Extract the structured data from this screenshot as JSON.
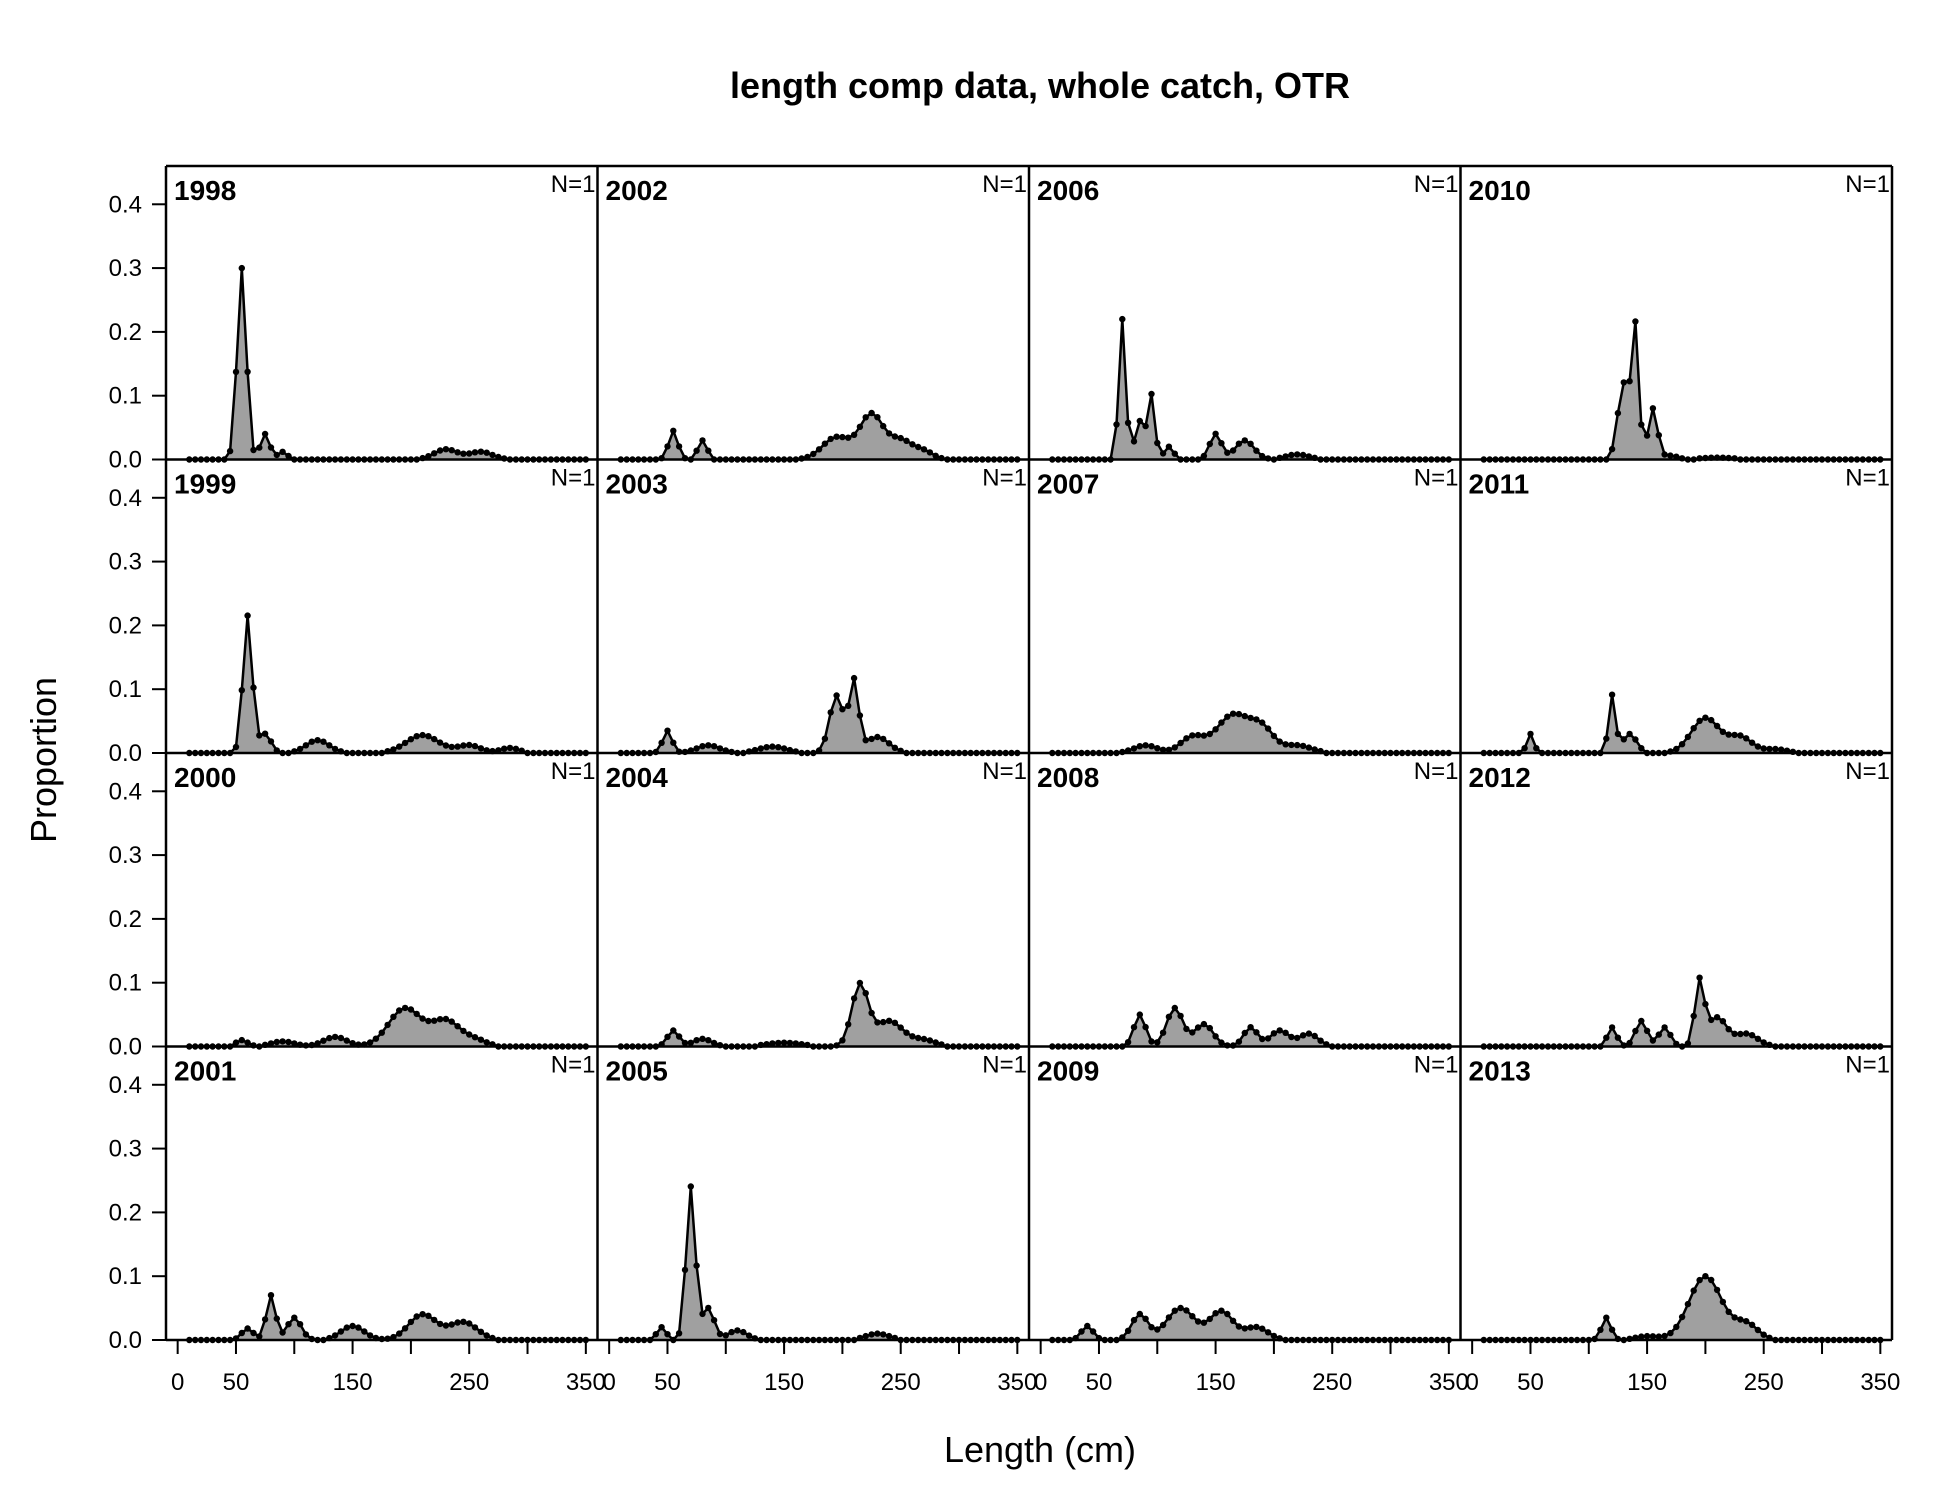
{
  "chart_data": {
    "type": "area",
    "title": "length comp data, whole catch, OTR",
    "xlabel": "Length (cm)",
    "ylabel": "Proportion",
    "xlim": [
      -10,
      360
    ],
    "ylim": [
      0,
      0.46
    ],
    "x_ticks": [
      0,
      50,
      150,
      250,
      350
    ],
    "y_ticks": [
      "0.0",
      "0.1",
      "0.2",
      "0.3",
      "0.4"
    ],
    "grid": false,
    "fill_color": "#a0a0a0",
    "line_color": "#000000",
    "bin_start": 10,
    "bin_step": 5,
    "bin_end": 350,
    "panels": [
      {
        "year": "1998",
        "n_label": "N=1",
        "peaks": [
          [
            55,
            0.3,
            4
          ],
          [
            75,
            0.04,
            4
          ],
          [
            90,
            0.012,
            4
          ],
          [
            230,
            0.016,
            10
          ],
          [
            260,
            0.012,
            10
          ]
        ]
      },
      {
        "year": "1999",
        "n_label": "N=1",
        "peaks": [
          [
            60,
            0.215,
            4
          ],
          [
            75,
            0.03,
            5
          ],
          [
            120,
            0.02,
            10
          ],
          [
            210,
            0.028,
            14
          ],
          [
            250,
            0.012,
            10
          ],
          [
            285,
            0.008,
            8
          ]
        ]
      },
      {
        "year": "2000",
        "n_label": "N=1",
        "peaks": [
          [
            55,
            0.01,
            5
          ],
          [
            90,
            0.008,
            10
          ],
          [
            135,
            0.015,
            10
          ],
          [
            195,
            0.06,
            14
          ],
          [
            230,
            0.04,
            12
          ],
          [
            255,
            0.01,
            10
          ]
        ]
      },
      {
        "year": "2001",
        "n_label": "N=1",
        "peaks": [
          [
            60,
            0.018,
            5
          ],
          [
            80,
            0.07,
            4
          ],
          [
            100,
            0.035,
            6
          ],
          [
            150,
            0.022,
            10
          ],
          [
            210,
            0.04,
            12
          ],
          [
            245,
            0.028,
            12
          ]
        ]
      },
      {
        "year": "2002",
        "n_label": "N=1",
        "peaks": [
          [
            55,
            0.045,
            4
          ],
          [
            80,
            0.03,
            4
          ],
          [
            195,
            0.035,
            12
          ],
          [
            225,
            0.07,
            10
          ],
          [
            250,
            0.03,
            10
          ],
          [
            270,
            0.012,
            8
          ]
        ]
      },
      {
        "year": "2003",
        "n_label": "N=1",
        "peaks": [
          [
            50,
            0.035,
            4
          ],
          [
            85,
            0.012,
            10
          ],
          [
            140,
            0.01,
            12
          ],
          [
            195,
            0.09,
            6
          ],
          [
            210,
            0.11,
            4
          ],
          [
            230,
            0.025,
            10
          ]
        ]
      },
      {
        "year": "2004",
        "n_label": "N=1",
        "peaks": [
          [
            55,
            0.025,
            5
          ],
          [
            80,
            0.012,
            8
          ],
          [
            150,
            0.006,
            15
          ],
          [
            215,
            0.095,
            7
          ],
          [
            240,
            0.04,
            12
          ],
          [
            270,
            0.01,
            10
          ]
        ]
      },
      {
        "year": "2005",
        "n_label": "N=1",
        "peaks": [
          [
            45,
            0.02,
            4
          ],
          [
            70,
            0.24,
            4
          ],
          [
            85,
            0.05,
            5
          ],
          [
            110,
            0.015,
            8
          ],
          [
            230,
            0.01,
            10
          ]
        ]
      },
      {
        "year": "2006",
        "n_label": "N=1",
        "peaks": [
          [
            70,
            0.22,
            3
          ],
          [
            85,
            0.06,
            4
          ],
          [
            95,
            0.1,
            3
          ],
          [
            110,
            0.02,
            4
          ],
          [
            150,
            0.04,
            5
          ],
          [
            175,
            0.03,
            8
          ],
          [
            220,
            0.008,
            10
          ]
        ]
      },
      {
        "year": "2007",
        "n_label": "N=1",
        "peaks": [
          [
            90,
            0.012,
            10
          ],
          [
            130,
            0.025,
            10
          ],
          [
            165,
            0.06,
            14
          ],
          [
            190,
            0.035,
            10
          ],
          [
            220,
            0.012,
            12
          ]
        ]
      },
      {
        "year": "2008",
        "n_label": "N=1",
        "peaks": [
          [
            85,
            0.05,
            5
          ],
          [
            115,
            0.06,
            7
          ],
          [
            140,
            0.035,
            8
          ],
          [
            180,
            0.03,
            6
          ],
          [
            205,
            0.025,
            8
          ],
          [
            230,
            0.02,
            8
          ]
        ]
      },
      {
        "year": "2009",
        "n_label": "N=1",
        "peaks": [
          [
            40,
            0.022,
            5
          ],
          [
            85,
            0.04,
            7
          ],
          [
            120,
            0.05,
            12
          ],
          [
            155,
            0.045,
            10
          ],
          [
            185,
            0.02,
            10
          ]
        ]
      },
      {
        "year": "2010",
        "n_label": "N=1",
        "peaks": [
          [
            130,
            0.12,
            5
          ],
          [
            140,
            0.2,
            3
          ],
          [
            155,
            0.08,
            4
          ],
          [
            170,
            0.006,
            6
          ],
          [
            210,
            0.003,
            15
          ]
        ]
      },
      {
        "year": "2011",
        "n_label": "N=1",
        "peaks": [
          [
            50,
            0.03,
            3
          ],
          [
            120,
            0.09,
            3
          ],
          [
            135,
            0.03,
            6
          ],
          [
            200,
            0.055,
            12
          ],
          [
            230,
            0.025,
            10
          ],
          [
            260,
            0.006,
            10
          ]
        ]
      },
      {
        "year": "2012",
        "n_label": "N=1",
        "peaks": [
          [
            120,
            0.03,
            4
          ],
          [
            145,
            0.04,
            5
          ],
          [
            165,
            0.03,
            5
          ],
          [
            195,
            0.1,
            4
          ],
          [
            210,
            0.045,
            8
          ],
          [
            235,
            0.02,
            10
          ]
        ]
      },
      {
        "year": "2013",
        "n_label": "N=1",
        "peaks": [
          [
            115,
            0.035,
            4
          ],
          [
            150,
            0.006,
            10
          ],
          [
            200,
            0.1,
            14
          ],
          [
            235,
            0.025,
            10
          ]
        ]
      }
    ]
  }
}
